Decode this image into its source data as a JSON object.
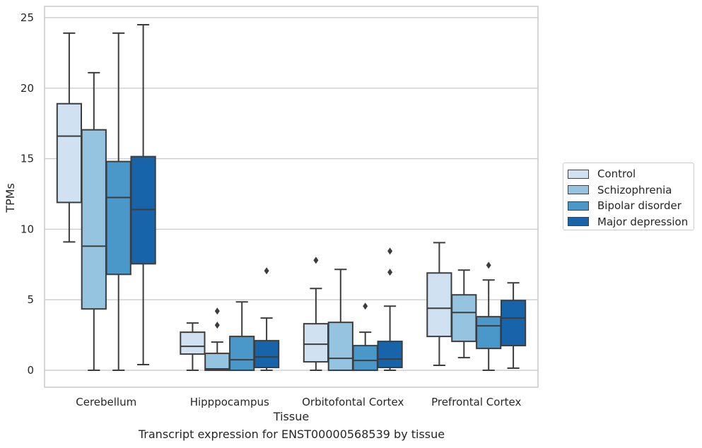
{
  "caption": "Transcript expression for ENST00000568539 by tissue",
  "chart_data": {
    "type": "box",
    "xlabel": "Tissue",
    "ylabel": "TPMs",
    "ylim": [
      -1.2,
      25.8
    ],
    "yticks": [
      0,
      5,
      10,
      15,
      20,
      25
    ],
    "grid": true,
    "legend_position": "right",
    "categories": [
      "Cerebellum",
      "Hipppocampus",
      "Orbitofontal Cortex",
      "Prefrontal Cortex"
    ],
    "series": [
      {
        "name": "Control",
        "color": "#d0e1f2",
        "boxes": [
          {
            "whislo": 9.1,
            "q1": 11.9,
            "med": 16.6,
            "q3": 18.9,
            "whishi": 23.9,
            "fliers": []
          },
          {
            "whislo": 0.0,
            "q1": 1.15,
            "med": 1.7,
            "q3": 2.7,
            "whishi": 3.35,
            "fliers": []
          },
          {
            "whislo": 0.0,
            "q1": 0.6,
            "med": 1.85,
            "q3": 3.3,
            "whishi": 5.8,
            "fliers": [
              7.8
            ]
          },
          {
            "whislo": 0.35,
            "q1": 2.4,
            "med": 4.4,
            "q3": 6.9,
            "whishi": 9.05,
            "fliers": []
          }
        ]
      },
      {
        "name": "Schizophrenia",
        "color": "#94c4df",
        "boxes": [
          {
            "whislo": 0.0,
            "q1": 4.35,
            "med": 8.8,
            "q3": 17.05,
            "whishi": 21.1,
            "fliers": []
          },
          {
            "whislo": 0.0,
            "q1": 0.0,
            "med": 0.1,
            "q3": 1.2,
            "whishi": 2.0,
            "fliers": [
              3.2,
              4.2
            ]
          },
          {
            "whislo": 0.0,
            "q1": 0.0,
            "med": 0.85,
            "q3": 3.4,
            "whishi": 7.15,
            "fliers": []
          },
          {
            "whislo": 0.9,
            "q1": 2.05,
            "med": 4.1,
            "q3": 5.35,
            "whishi": 7.1,
            "fliers": []
          }
        ]
      },
      {
        "name": "Bipolar disorder",
        "color": "#4a98c9",
        "boxes": [
          {
            "whislo": 0.0,
            "q1": 6.8,
            "med": 12.25,
            "q3": 14.8,
            "whishi": 23.9,
            "fliers": []
          },
          {
            "whislo": 0.0,
            "q1": 0.0,
            "med": 0.75,
            "q3": 2.4,
            "whishi": 4.85,
            "fliers": []
          },
          {
            "whislo": 0.0,
            "q1": 0.0,
            "med": 0.7,
            "q3": 1.75,
            "whishi": 2.7,
            "fliers": [
              4.55
            ]
          },
          {
            "whislo": 0.0,
            "q1": 1.55,
            "med": 3.15,
            "q3": 3.8,
            "whishi": 6.4,
            "fliers": [
              7.45
            ]
          }
        ]
      },
      {
        "name": "Major depression",
        "color": "#1764ab",
        "boxes": [
          {
            "whislo": 0.4,
            "q1": 7.55,
            "med": 11.4,
            "q3": 15.15,
            "whishi": 24.5,
            "fliers": []
          },
          {
            "whislo": 0.0,
            "q1": 0.2,
            "med": 0.95,
            "q3": 2.1,
            "whishi": 3.7,
            "fliers": [
              7.05
            ]
          },
          {
            "whislo": 0.0,
            "q1": 0.2,
            "med": 0.8,
            "q3": 2.05,
            "whishi": 4.55,
            "fliers": [
              6.95,
              8.45
            ]
          },
          {
            "whislo": 0.15,
            "q1": 1.75,
            "med": 3.7,
            "q3": 4.95,
            "whishi": 6.2,
            "fliers": []
          }
        ]
      }
    ]
  }
}
